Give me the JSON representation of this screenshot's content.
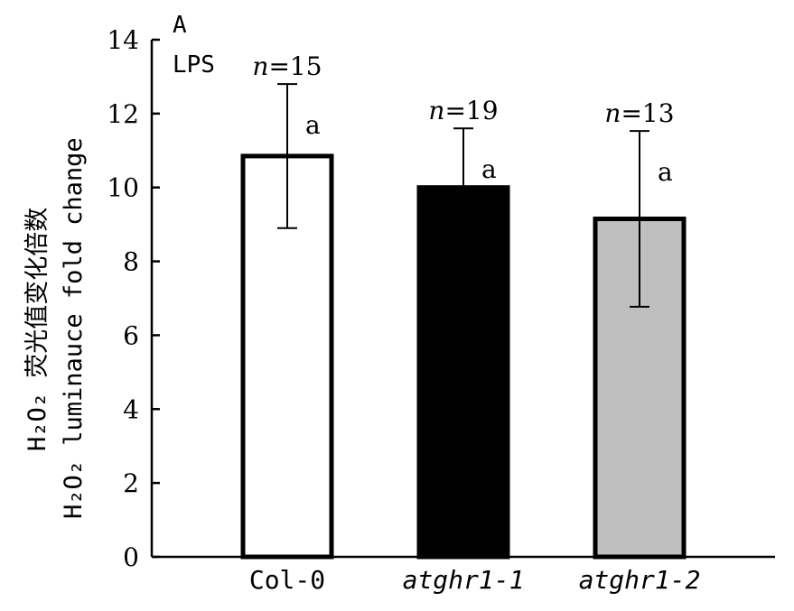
{
  "chart_data": {
    "type": "bar",
    "panel_label": "A",
    "condition_label": "LPS",
    "ylabel_line1": "H₂O₂ 荧光值变化倍数",
    "ylabel_line2": "H₂O₂ luminauce fold change",
    "ylim": [
      0,
      14
    ],
    "yticks": [
      0,
      2,
      4,
      6,
      8,
      10,
      12,
      14
    ],
    "categories": [
      "Col-0",
      "atghr1-1",
      "atghr1-2"
    ],
    "values": [
      10.85,
      10.0,
      9.15
    ],
    "errors": [
      1.95,
      1.6,
      2.38
    ],
    "n_values": [
      "15",
      "19",
      "13"
    ],
    "n_prefix": "n",
    "significance": [
      "a",
      "a",
      "a"
    ],
    "bar_colors": [
      "#ffffff",
      "#000000",
      "#bfbfbf"
    ],
    "grid": false
  }
}
